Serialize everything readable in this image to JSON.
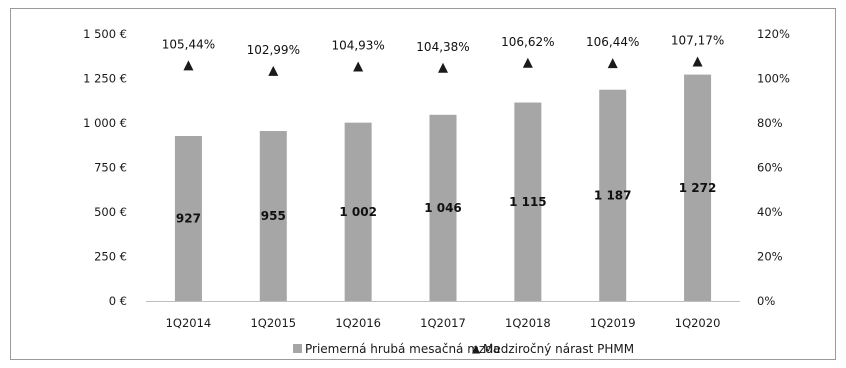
{
  "chart_data": {
    "type": "bar",
    "categories": [
      "1Q2014",
      "1Q2015",
      "1Q2016",
      "1Q2017",
      "1Q2018",
      "1Q2019",
      "1Q2020"
    ],
    "series": [
      {
        "name": "Priemerná hrubá mesačná mzda",
        "type": "bar",
        "axis": "left",
        "values": [
          927,
          955,
          1002,
          1046,
          1115,
          1187,
          1272
        ],
        "data_labels": [
          "927",
          "955",
          "1 002",
          "1 046",
          "1 115",
          "1 187",
          "1 272"
        ],
        "color": "#a6a6a6"
      },
      {
        "name": "Medziročný nárast PHMM",
        "type": "scatter",
        "marker": "triangle",
        "axis": "right",
        "values": [
          105.44,
          102.99,
          104.93,
          104.38,
          106.62,
          106.44,
          107.17
        ],
        "data_labels": [
          "105,44%",
          "102,99%",
          "104,93%",
          "104,38%",
          "106,62%",
          "106,44%",
          "107,17%"
        ],
        "color": "#1a1a1a"
      }
    ],
    "y_left": {
      "ylim": [
        0,
        1500
      ],
      "tick_values": [
        0,
        250,
        500,
        750,
        1000,
        1250,
        1500
      ],
      "tick_labels": [
        "0 €",
        "250 €",
        "500 €",
        "750 €",
        "1 000 €",
        "1 250 €",
        "1 500 €"
      ]
    },
    "y_right": {
      "ylim": [
        0,
        120
      ],
      "tick_values": [
        0,
        20,
        40,
        60,
        80,
        100,
        120
      ],
      "tick_labels": [
        "0%",
        "20%",
        "40%",
        "60%",
        "80%",
        "100%",
        "120%"
      ]
    },
    "grid": false,
    "legend_position": "bottom"
  }
}
